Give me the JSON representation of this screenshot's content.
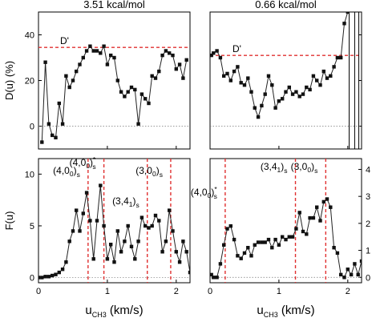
{
  "chart_data": [
    {
      "panel": "top-left",
      "type": "line",
      "title": "3.51 kcal/mol",
      "ylabel": "D(u) (%)",
      "xlim": [
        0,
        2.2
      ],
      "ylim": [
        -10,
        50
      ],
      "yticks": [
        0,
        20,
        40
      ],
      "annotations": [
        {
          "text": "D'",
          "y": 34.5
        }
      ],
      "series": [
        {
          "x": [
            0.05,
            0.1,
            0.15,
            0.2,
            0.25,
            0.3,
            0.35,
            0.4,
            0.45,
            0.5,
            0.55,
            0.6,
            0.65,
            0.7,
            0.75,
            0.8,
            0.85,
            0.9,
            0.95,
            1.0,
            1.05,
            1.1,
            1.15,
            1.2,
            1.25,
            1.3,
            1.35,
            1.4,
            1.45,
            1.5,
            1.55,
            1.6,
            1.65,
            1.7,
            1.75,
            1.8,
            1.85,
            1.9,
            1.95,
            2.0,
            2.05,
            2.1,
            2.15
          ],
          "y": [
            -7,
            28,
            1,
            -4,
            -5,
            10,
            1,
            22,
            17,
            20,
            24,
            27,
            30,
            33,
            35,
            33,
            33,
            32,
            35,
            27,
            31,
            30,
            20,
            15,
            13,
            15,
            17,
            16,
            1,
            14,
            12,
            10,
            22,
            21,
            24,
            31,
            33,
            32,
            31,
            25,
            27,
            21,
            29
          ]
        }
      ]
    },
    {
      "panel": "top-right",
      "type": "line",
      "title": "0.66 kcal/mol",
      "xlim": [
        0,
        2.2
      ],
      "ylim": [
        -10,
        50
      ],
      "yticks": [
        0,
        20,
        40
      ],
      "annotations": [
        {
          "text": "D'",
          "y": 31
        }
      ],
      "series": [
        {
          "x": [
            0.02,
            0.05,
            0.1,
            0.15,
            0.2,
            0.25,
            0.3,
            0.35,
            0.4,
            0.45,
            0.5,
            0.55,
            0.6,
            0.65,
            0.7,
            0.75,
            0.8,
            0.85,
            0.9,
            0.95,
            1.0,
            1.05,
            1.1,
            1.15,
            1.2,
            1.25,
            1.3,
            1.35,
            1.4,
            1.45,
            1.5,
            1.55,
            1.6,
            1.65,
            1.7,
            1.75,
            1.8,
            1.85,
            1.9,
            1.95,
            2.0
          ],
          "y": [
            31,
            32,
            33,
            30,
            22,
            23,
            20,
            24,
            26,
            19,
            18,
            21,
            15,
            8,
            4,
            9,
            14,
            22,
            18,
            8,
            11,
            12,
            15,
            17,
            14,
            15,
            13,
            14,
            17,
            16,
            22,
            20,
            18,
            24,
            21,
            22,
            26,
            30,
            30,
            45,
            50
          ]
        }
      ]
    },
    {
      "panel": "bottom-left",
      "type": "line",
      "ylabel": "F(u)",
      "xlabel": "u_CH3 (km/s)",
      "xlim": [
        0,
        2.2
      ],
      "ylim": [
        -0.5,
        11.5
      ],
      "yticks": [
        0,
        5,
        10
      ],
      "xticks": [
        0,
        1,
        2
      ],
      "annotations": [
        {
          "text": "(4,0",
          "sub": "0",
          "tail": ")",
          "sub2": "s",
          "x": 0.72
        },
        {
          "text": "(4,0",
          "sub": "0",
          "tail": ")",
          "sup": "*",
          "sub2": "s",
          "x": 0.95
        },
        {
          "text": "(3,4",
          "sub": "1",
          "tail": ")",
          "sub2": "s",
          "x": 1.58
        },
        {
          "text": "(3,0",
          "sub": "0",
          "tail": ")",
          "sub2": "s",
          "x": 1.92
        }
      ],
      "series": [
        {
          "x": [
            0.0,
            0.05,
            0.1,
            0.15,
            0.2,
            0.25,
            0.3,
            0.35,
            0.4,
            0.45,
            0.5,
            0.55,
            0.6,
            0.65,
            0.7,
            0.75,
            0.8,
            0.85,
            0.9,
            0.95,
            1.0,
            1.05,
            1.1,
            1.15,
            1.2,
            1.25,
            1.3,
            1.35,
            1.4,
            1.45,
            1.5,
            1.55,
            1.6,
            1.65,
            1.7,
            1.75,
            1.8,
            1.85,
            1.9,
            1.95,
            2.0,
            2.05,
            2.1,
            2.15,
            2.2
          ],
          "y": [
            0,
            0,
            0.1,
            0.1,
            0.2,
            0.3,
            0.5,
            0.8,
            1.5,
            3.5,
            4.5,
            6.5,
            4.5,
            6.2,
            8.2,
            5.5,
            1.8,
            5.5,
            8.9,
            5,
            1.8,
            3.2,
            1.5,
            4.5,
            2.5,
            3.5,
            5,
            3,
            1.8,
            3.5,
            5.8,
            5,
            4.8,
            5,
            6,
            5.5,
            2.5,
            3.5,
            6.5,
            4.5,
            2.5,
            1.5,
            3.5,
            2.5,
            0.5
          ]
        }
      ]
    },
    {
      "panel": "bottom-right",
      "type": "line",
      "xlabel": "u_CH3 (km/s)",
      "xlim": [
        0,
        2.2
      ],
      "ylim": [
        -0.2,
        4.4
      ],
      "yticks": [
        0,
        1,
        2,
        3,
        4
      ],
      "xticks": [
        0,
        1,
        2
      ],
      "annotations": [
        {
          "text": "(4,0",
          "sub": "0",
          "tail": ")",
          "sup": "*",
          "sub2": "s",
          "x": 0.22
        },
        {
          "text": "(3,4",
          "sub": "1",
          "tail": ")",
          "sub2": "s",
          "x": 1.24
        },
        {
          "text": "(3,0",
          "sub": "0",
          "tail": ")",
          "sub2": "s",
          "x": 1.68
        }
      ],
      "series": [
        {
          "x": [
            0.02,
            0.05,
            0.1,
            0.15,
            0.2,
            0.25,
            0.3,
            0.35,
            0.4,
            0.45,
            0.5,
            0.55,
            0.6,
            0.65,
            0.7,
            0.75,
            0.8,
            0.85,
            0.9,
            0.95,
            1.0,
            1.05,
            1.1,
            1.15,
            1.2,
            1.25,
            1.3,
            1.35,
            1.4,
            1.45,
            1.5,
            1.55,
            1.6,
            1.65,
            1.7,
            1.75,
            1.8,
            1.85,
            1.9,
            1.95,
            2.0,
            2.05,
            2.1,
            2.15,
            2.2
          ],
          "y": [
            0.1,
            0,
            0,
            0.5,
            1.2,
            1.8,
            1.9,
            1.4,
            0.8,
            0.7,
            0.9,
            1.1,
            0.8,
            1.2,
            1.3,
            1.3,
            1.3,
            1.4,
            1.1,
            1.4,
            1.2,
            1.5,
            1.4,
            1.5,
            1.5,
            1.8,
            2.4,
            1.7,
            1.6,
            2.2,
            2.2,
            2.6,
            2.1,
            2.8,
            2.9,
            2.6,
            1.1,
            0.9,
            0.1,
            0,
            0.3,
            0.1,
            0.5,
            0.1,
            0.6
          ]
        }
      ]
    }
  ]
}
